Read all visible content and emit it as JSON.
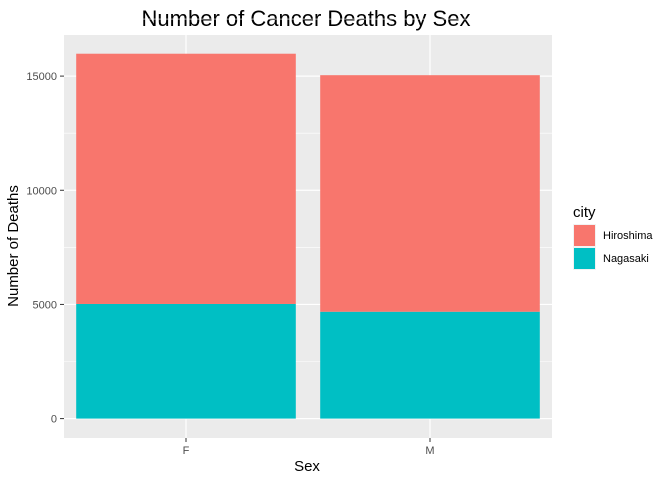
{
  "chart_data": {
    "type": "bar",
    "stacked": true,
    "title": "Number of Cancer Deaths by Sex",
    "xlabel": "Sex",
    "ylabel": "Number of Deaths",
    "categories": [
      "F",
      "M"
    ],
    "series": [
      {
        "name": "Hiroshima",
        "color": "#F8766D",
        "values": [
          10960,
          10360
        ]
      },
      {
        "name": "Nagasaki",
        "color": "#00BFC4",
        "values": [
          5020,
          4680
        ]
      }
    ],
    "ylim": [
      -850,
      16800
    ],
    "yticks": [
      0,
      5000,
      10000,
      15000
    ],
    "ytick_labels": [
      "0",
      "5000",
      "10000",
      "15000"
    ],
    "grid": true,
    "legend_title": "city",
    "legend_position": "right"
  }
}
